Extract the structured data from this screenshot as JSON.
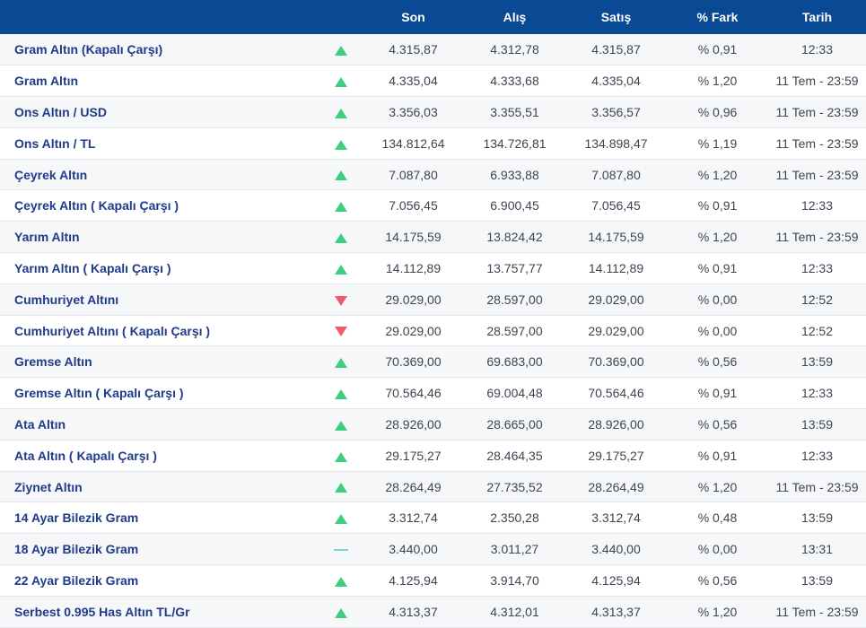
{
  "header": {
    "son": "Son",
    "alis": "Alış",
    "satis": "Satış",
    "fark": "% Fark",
    "tarih": "Tarih"
  },
  "colors": {
    "header_bg": "#0a4a94",
    "up": "#3fce7c",
    "down": "#ef5a6f",
    "flat": "#7fd3dd",
    "name": "#1f3b8a"
  },
  "rows": [
    {
      "name": "Gram Altın (Kapalı Çarşı)",
      "trend": "up",
      "son": "4.315,87",
      "alis": "4.312,78",
      "satis": "4.315,87",
      "fark": "% 0,91",
      "tarih": "12:33"
    },
    {
      "name": "Gram Altın",
      "trend": "up",
      "son": "4.335,04",
      "alis": "4.333,68",
      "satis": "4.335,04",
      "fark": "% 1,20",
      "tarih": "11 Tem - 23:59"
    },
    {
      "name": "Ons Altın / USD",
      "trend": "up",
      "son": "3.356,03",
      "alis": "3.355,51",
      "satis": "3.356,57",
      "fark": "% 0,96",
      "tarih": "11 Tem - 23:59"
    },
    {
      "name": "Ons Altın / TL",
      "trend": "up",
      "son": "134.812,64",
      "alis": "134.726,81",
      "satis": "134.898,47",
      "fark": "% 1,19",
      "tarih": "11 Tem - 23:59"
    },
    {
      "name": "Çeyrek Altın",
      "trend": "up",
      "son": "7.087,80",
      "alis": "6.933,88",
      "satis": "7.087,80",
      "fark": "% 1,20",
      "tarih": "11 Tem - 23:59"
    },
    {
      "name": "Çeyrek Altın ( Kapalı Çarşı )",
      "trend": "up",
      "son": "7.056,45",
      "alis": "6.900,45",
      "satis": "7.056,45",
      "fark": "% 0,91",
      "tarih": "12:33"
    },
    {
      "name": "Yarım Altın",
      "trend": "up",
      "son": "14.175,59",
      "alis": "13.824,42",
      "satis": "14.175,59",
      "fark": "% 1,20",
      "tarih": "11 Tem - 23:59"
    },
    {
      "name": "Yarım Altın ( Kapalı Çarşı )",
      "trend": "up",
      "son": "14.112,89",
      "alis": "13.757,77",
      "satis": "14.112,89",
      "fark": "% 0,91",
      "tarih": "12:33"
    },
    {
      "name": "Cumhuriyet Altını",
      "trend": "down",
      "son": "29.029,00",
      "alis": "28.597,00",
      "satis": "29.029,00",
      "fark": "% 0,00",
      "tarih": "12:52"
    },
    {
      "name": "Cumhuriyet Altını ( Kapalı Çarşı )",
      "trend": "down",
      "son": "29.029,00",
      "alis": "28.597,00",
      "satis": "29.029,00",
      "fark": "% 0,00",
      "tarih": "12:52"
    },
    {
      "name": "Gremse Altın",
      "trend": "up",
      "son": "70.369,00",
      "alis": "69.683,00",
      "satis": "70.369,00",
      "fark": "% 0,56",
      "tarih": "13:59"
    },
    {
      "name": "Gremse Altın ( Kapalı Çarşı )",
      "trend": "up",
      "son": "70.564,46",
      "alis": "69.004,48",
      "satis": "70.564,46",
      "fark": "% 0,91",
      "tarih": "12:33"
    },
    {
      "name": "Ata Altın",
      "trend": "up",
      "son": "28.926,00",
      "alis": "28.665,00",
      "satis": "28.926,00",
      "fark": "% 0,56",
      "tarih": "13:59"
    },
    {
      "name": "Ata Altın ( Kapalı Çarşı )",
      "trend": "up",
      "son": "29.175,27",
      "alis": "28.464,35",
      "satis": "29.175,27",
      "fark": "% 0,91",
      "tarih": "12:33"
    },
    {
      "name": "Ziynet Altın",
      "trend": "up",
      "son": "28.264,49",
      "alis": "27.735,52",
      "satis": "28.264,49",
      "fark": "% 1,20",
      "tarih": "11 Tem - 23:59"
    },
    {
      "name": "14 Ayar Bilezik Gram",
      "trend": "up",
      "son": "3.312,74",
      "alis": "2.350,28",
      "satis": "3.312,74",
      "fark": "% 0,48",
      "tarih": "13:59"
    },
    {
      "name": "18 Ayar Bilezik Gram",
      "trend": "flat",
      "son": "3.440,00",
      "alis": "3.011,27",
      "satis": "3.440,00",
      "fark": "% 0,00",
      "tarih": "13:31"
    },
    {
      "name": "22 Ayar Bilezik Gram",
      "trend": "up",
      "son": "4.125,94",
      "alis": "3.914,70",
      "satis": "4.125,94",
      "fark": "% 0,56",
      "tarih": "13:59"
    },
    {
      "name": "Serbest 0.995 Has Altın TL/Gr",
      "trend": "up",
      "son": "4.313,37",
      "alis": "4.312,01",
      "satis": "4.313,37",
      "fark": "% 1,20",
      "tarih": "11 Tem - 23:59"
    }
  ]
}
